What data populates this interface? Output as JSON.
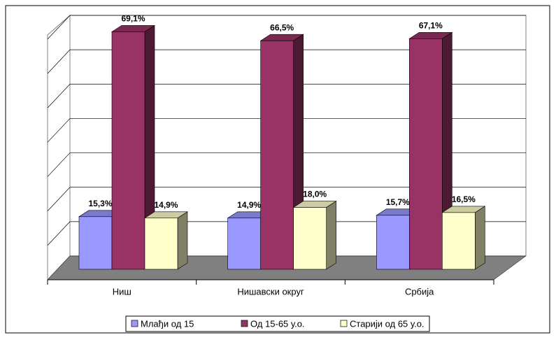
{
  "chart_data": {
    "type": "bar3d",
    "categories": [
      "Ниш",
      "Нишавски округ",
      "Србија"
    ],
    "series": [
      {
        "name": "Млађи од 15",
        "color": "#9999ff",
        "values": [
          15.3,
          14.9,
          15.7
        ],
        "value_labels": [
          "15,3%",
          "14,9%",
          "15,7%"
        ]
      },
      {
        "name": "Од 15-65 у.о.",
        "color": "#993366",
        "values": [
          69.1,
          66.5,
          67.1
        ],
        "value_labels": [
          "69,1%",
          "66,5%",
          "67,1%"
        ]
      },
      {
        "name": "Старији од 65 у.о.",
        "color": "#ffffcc",
        "values": [
          14.9,
          18.0,
          16.5
        ],
        "value_labels": [
          "14,9%",
          "18,0%",
          "16,5%"
        ]
      }
    ],
    "ylim": [
      0,
      70
    ],
    "yticks": [
      0,
      10,
      20,
      30,
      40,
      50,
      60,
      70
    ],
    "grid": true,
    "legend": "bottom"
  }
}
